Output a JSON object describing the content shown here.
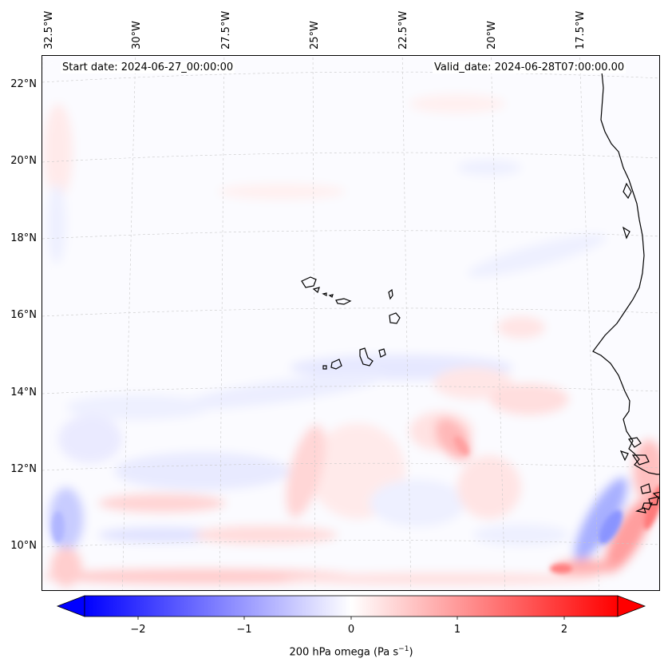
{
  "header": {
    "start_date": "Start date: 2024-06-27_00:00:00",
    "valid_date": "Valid_date: 2024-06-28T07:00:00.00"
  },
  "axes": {
    "lat_labels": [
      "22°N",
      "20°N",
      "18°N",
      "16°N",
      "14°N",
      "12°N",
      "10°N"
    ],
    "lon_labels": [
      "32.5°W",
      "30°W",
      "27.5°W",
      "25°W",
      "22.5°W",
      "20°W",
      "17.5°W"
    ]
  },
  "colorbar": {
    "ticks": [
      "−2",
      "−1",
      "0",
      "1",
      "2"
    ],
    "label": "200 hPa omega (Pa s",
    "label_sup": "−1",
    "label_tail": ")",
    "cmap": "bwr",
    "vmin": -2.7,
    "vmax": 2.7
  },
  "colors": {
    "negative": "#0000ff",
    "neutral": "#ffffff",
    "positive": "#ff0000",
    "coastline": "#000000",
    "gridline": "#bbbbbb"
  }
}
